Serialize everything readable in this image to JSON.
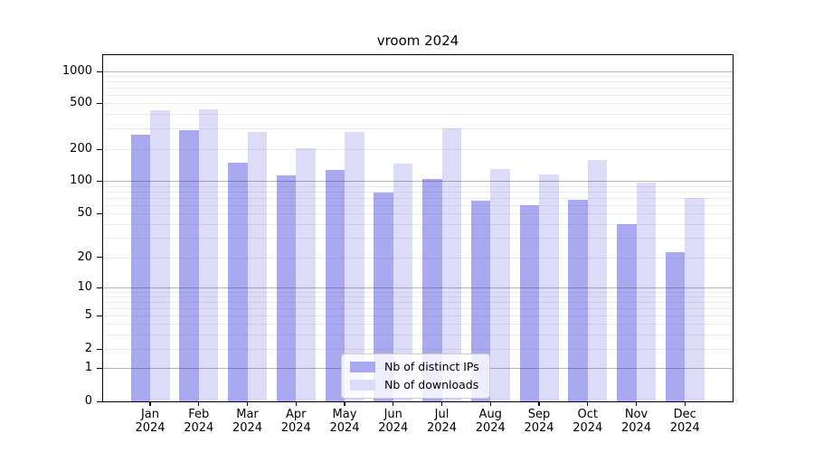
{
  "title": "vroom 2024",
  "chart_data": {
    "type": "bar",
    "title": "vroom 2024",
    "categories": [
      "Jan",
      "Feb",
      "Mar",
      "Apr",
      "May",
      "Jun",
      "Jul",
      "Aug",
      "Sep",
      "Oct",
      "Nov",
      "Dec"
    ],
    "category_year": "2024",
    "series": [
      {
        "name": "Nb of distinct IPs",
        "color": "#a9a9f2",
        "values": [
          265,
          290,
          150,
          113,
          128,
          78,
          105,
          66,
          60,
          67,
          40,
          22
        ]
      },
      {
        "name": "Nb of downloads",
        "color": "#dcdcf8",
        "values": [
          430,
          440,
          280,
          205,
          280,
          146,
          300,
          129,
          116,
          158,
          96,
          70
        ]
      }
    ],
    "y_axis": {
      "scale": "symlog",
      "tick_labels": [
        0,
        1,
        2,
        5,
        10,
        20,
        50,
        100,
        200,
        500,
        1000
      ],
      "major_gridlines": [
        1,
        10,
        100,
        1000
      ],
      "minor_gridlines": [
        2,
        3,
        4,
        5,
        6,
        7,
        8,
        9,
        20,
        30,
        40,
        50,
        60,
        70,
        80,
        90,
        200,
        300,
        400,
        500,
        600,
        700,
        800,
        900
      ],
      "ylim": [
        0,
        1400
      ]
    },
    "xlabel": "",
    "ylabel": "",
    "grid": "both",
    "legend_position": "bottom-center"
  }
}
